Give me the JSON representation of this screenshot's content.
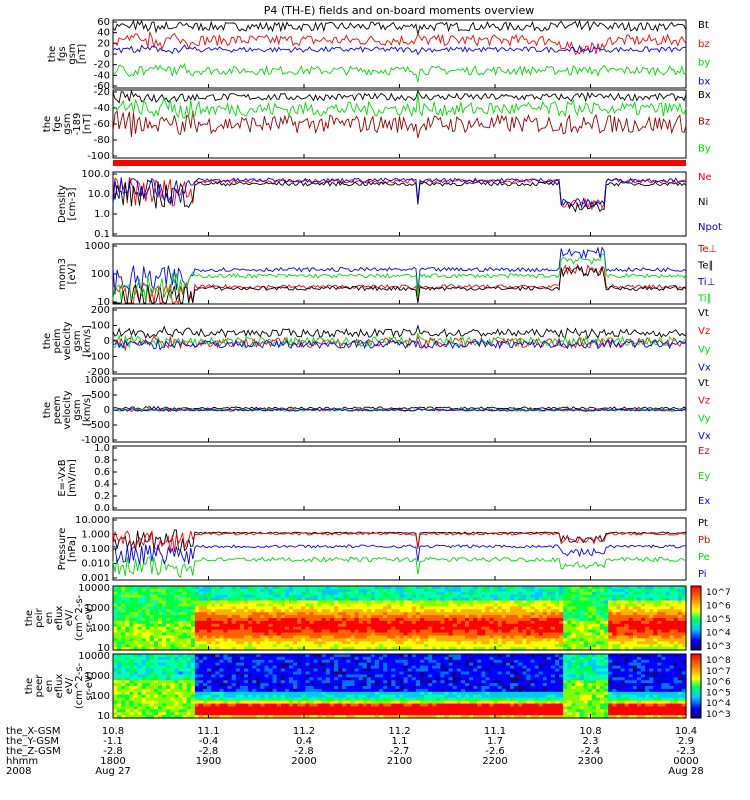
{
  "title": "P4 (TH-E) fields and on-board moments overview",
  "chart_data": [
    {
      "type": "line",
      "ylabel": [
        "the",
        "fgs",
        "gsm",
        "[nT]"
      ],
      "yticks": [
        "60",
        "40",
        "20",
        "0",
        "-20",
        "-40",
        "-60"
      ],
      "ylim": [
        -60,
        60
      ],
      "series": [
        {
          "name": "Bt",
          "color": "#000000",
          "base": 50,
          "amp": 8
        },
        {
          "name": "bz",
          "color": "#ff0000",
          "base": 25,
          "amp": 10
        },
        {
          "name": "by",
          "color": "#00dd00",
          "base": -30,
          "amp": 8
        },
        {
          "name": "bx",
          "color": "#0000ff",
          "base": 8,
          "amp": 5
        }
      ]
    },
    {
      "type": "line",
      "ylabel": [
        "the",
        "fge",
        "gsm",
        "-189",
        "[nT]"
      ],
      "yticks": [
        "-20",
        "-40",
        "-60",
        "-80",
        "-100"
      ],
      "ylim": [
        -110,
        0
      ],
      "series": [
        {
          "name": "Bx",
          "color": "#000000",
          "base": -10,
          "amp": 6
        },
        {
          "name": "Bz",
          "color": "#990000",
          "base": -55,
          "amp": 15
        },
        {
          "name": "By",
          "color": "#00dd00",
          "base": -30,
          "amp": 12
        }
      ]
    },
    {
      "type": "line",
      "ylabel": [
        "Density",
        "[cm-3]"
      ],
      "yticks": [
        "100.0",
        "10.0",
        "1.0",
        "0.1"
      ],
      "log": true,
      "ylim": [
        0.1,
        100
      ],
      "series": [
        {
          "name": "Ne",
          "color": "#ff0000",
          "base": 40,
          "amp": 0.2
        },
        {
          "name": "Ni",
          "color": "#000000",
          "base": 30,
          "amp": 0.2
        },
        {
          "name": "Npot",
          "color": "#0000ff",
          "base": 45,
          "amp": 0.2
        }
      ]
    },
    {
      "type": "line",
      "ylabel": [
        "mom3",
        "[eV]"
      ],
      "yticks": [
        "1000",
        "100",
        "10"
      ],
      "log": true,
      "ylim": [
        5,
        3000
      ],
      "series": [
        {
          "name": "Te⊥",
          "color": "#ff0000",
          "base": 30,
          "amp": 0.2
        },
        {
          "name": "Te∥",
          "color": "#000000",
          "base": 25,
          "amp": 0.2
        },
        {
          "name": "Ti⊥",
          "color": "#0000ff",
          "base": 200,
          "amp": 0.2
        },
        {
          "name": "Ti∥",
          "color": "#00dd00",
          "base": 100,
          "amp": 0.2
        }
      ]
    },
    {
      "type": "line",
      "ylabel": [
        "the",
        "peim",
        "velocity",
        "gsm",
        "[km/s]"
      ],
      "yticks": [
        "200",
        "100",
        "0",
        "-100",
        "-200"
      ],
      "ylim": [
        -200,
        200
      ],
      "series": [
        {
          "name": "Vt",
          "color": "#000000",
          "base": 50,
          "amp": 25
        },
        {
          "name": "Vz",
          "color": "#ff0000",
          "base": -10,
          "amp": 30
        },
        {
          "name": "Vy",
          "color": "#00dd00",
          "base": -5,
          "amp": 30
        },
        {
          "name": "Vx",
          "color": "#0000ff",
          "base": -20,
          "amp": 25
        }
      ]
    },
    {
      "type": "line",
      "ylabel": [
        "the",
        "peem",
        "velocity",
        "gsm",
        "[km/s]"
      ],
      "yticks": [
        "1000",
        "500",
        "0",
        "-500",
        "-1000"
      ],
      "ylim": [
        -1000,
        1000
      ],
      "series": [
        {
          "name": "Vt",
          "color": "#000000",
          "base": 60,
          "amp": 40
        },
        {
          "name": "Vz",
          "color": "#ff0000",
          "base": 0,
          "amp": 40
        },
        {
          "name": "Vy",
          "color": "#00dd00",
          "base": 0,
          "amp": 40
        },
        {
          "name": "Vx",
          "color": "#0000ff",
          "base": 0,
          "amp": 30
        }
      ]
    },
    {
      "type": "line",
      "ylabel": [
        "E=-VxB",
        "[mV/m]"
      ],
      "yticks": [
        "1.0",
        "0.8",
        "0.6",
        "0.4",
        "0.2",
        "0.0"
      ],
      "ylim": [
        0,
        1
      ],
      "series": [
        {
          "name": "Ez",
          "color": "#ff0000",
          "base": null,
          "amp": 0
        },
        {
          "name": "Ey",
          "color": "#00dd00",
          "base": null,
          "amp": 0
        },
        {
          "name": "Ex",
          "color": "#0000ff",
          "base": null,
          "amp": 0
        }
      ]
    },
    {
      "type": "line",
      "ylabel": [
        "Pressure",
        "[nPa]"
      ],
      "yticks": [
        "10.000",
        "1.000",
        "0.100",
        "0.010",
        "0.001"
      ],
      "log": true,
      "ylim": [
        0.001,
        10
      ],
      "series": [
        {
          "name": "Pt",
          "color": "#000000",
          "base": 1.2,
          "amp": 0.1
        },
        {
          "name": "Pb",
          "color": "#ff0000",
          "base": 1.0,
          "amp": 0.15
        },
        {
          "name": "Pe",
          "color": "#00dd00",
          "base": 0.02,
          "amp": 0.3
        },
        {
          "name": "Pi",
          "color": "#0000ff",
          "base": 0.15,
          "amp": 0.2
        }
      ]
    },
    {
      "type": "heatmap",
      "ylabel": [
        "the",
        "peir",
        "en",
        "eflux",
        "eV/",
        "(cm^2-s-",
        "sr-eV)"
      ],
      "yticks": [
        "10000",
        "1000",
        "100",
        "10"
      ],
      "colorbar_ticks": [
        "10^7",
        "10^6",
        "10^5",
        "10^4",
        "10^3"
      ],
      "colorbar_range": [
        3,
        7.5
      ]
    },
    {
      "type": "heatmap",
      "ylabel": [
        "the",
        "peer",
        "en",
        "eflux",
        "eV/",
        "(cm^2-s-",
        "sr-eV)"
      ],
      "yticks": [
        "10000",
        "1000",
        "100",
        "10"
      ],
      "colorbar_ticks": [
        "10^8",
        "10^7",
        "10^6",
        "10^5",
        "10^4",
        "10^3"
      ],
      "colorbar_range": [
        3,
        8.5
      ]
    }
  ],
  "x_axis": {
    "row_labels": [
      "the_X-GSM",
      "the_Y-GSM",
      "the_Z-GSM",
      "hhmm",
      "2008"
    ],
    "columns": [
      {
        "values": [
          "10.8",
          "-1.1",
          "-2.8",
          "1800",
          "Aug 27"
        ]
      },
      {
        "values": [
          "11.1",
          "-0.4",
          "-2.8",
          "1900",
          ""
        ]
      },
      {
        "values": [
          "11.2",
          "0.4",
          "-2.8",
          "2000",
          ""
        ]
      },
      {
        "values": [
          "11.2",
          "1.1",
          "-2.7",
          "2100",
          ""
        ]
      },
      {
        "values": [
          "11.1",
          "1.7",
          "-2.6",
          "2200",
          ""
        ]
      },
      {
        "values": [
          "10.8",
          "2.3",
          "-2.4",
          "2300",
          ""
        ]
      },
      {
        "values": [
          "10.4",
          "2.9",
          "-2.3",
          "0000",
          "Aug 28"
        ]
      }
    ]
  }
}
